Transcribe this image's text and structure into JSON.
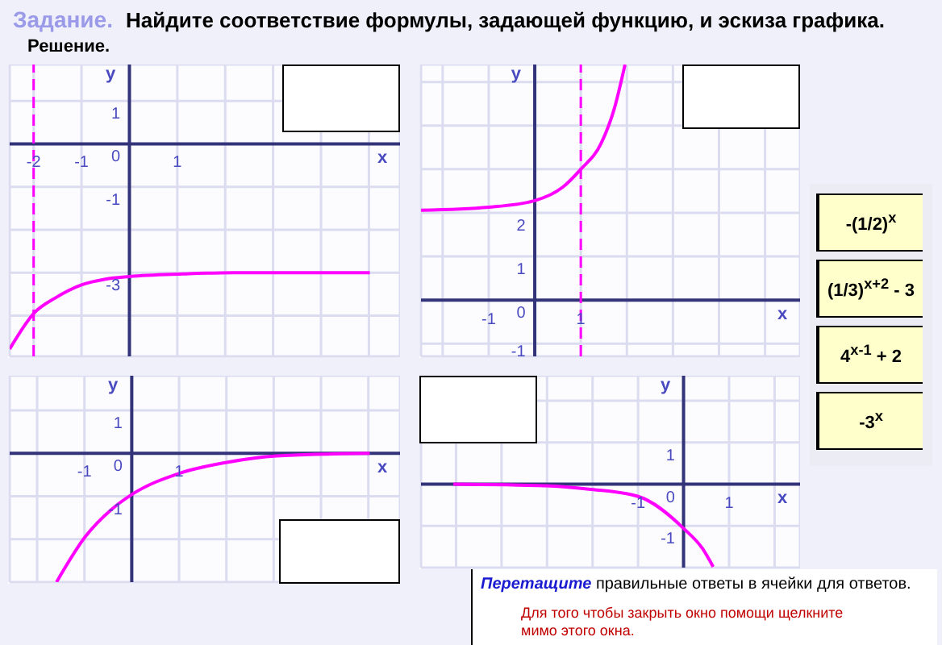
{
  "chart_data": [
    {
      "type": "line",
      "xlabel": "x",
      "ylabel": "y",
      "color": "#ff00ff",
      "grid": true,
      "x": [
        -2.5,
        -1.98,
        -1.55,
        -0.99,
        -0.5,
        0,
        1.13,
        2.17,
        3.5,
        5.02
      ],
      "values": [
        -4.78,
        -3.93,
        -3.59,
        -3.28,
        -3.15,
        -3.09,
        -3.03,
        -3,
        -3,
        -3
      ],
      "xlim": [
        -2.5,
        5.65
      ],
      "ylim": [
        -4.95,
        1.85
      ],
      "xticks": [
        -2,
        -1,
        {
          "value": 0,
          "label": null
        },
        1,
        {
          "value": 2,
          "label": null
        },
        {
          "value": 3,
          "label": null
        },
        {
          "value": 4,
          "label": null
        },
        {
          "value": 5,
          "label": null
        }
      ],
      "yticks": [
        1,
        0,
        -1,
        {
          "value": -2,
          "label": null
        },
        -3,
        {
          "value": -4,
          "label": null
        }
      ],
      "ref_lines": [
        {
          "axis": "x",
          "value": -2,
          "color": "#ff00ff",
          "line_style": "dashed"
        }
      ]
    },
    {
      "type": "line",
      "xlabel": "x",
      "ylabel": "y",
      "color": "#ff00ff",
      "grid": true,
      "x": [
        -2.47,
        -1,
        0,
        0.61,
        1,
        1.44,
        1.73,
        1.96
      ],
      "values": [
        2.06,
        2.13,
        2.28,
        2.59,
        3,
        3.59,
        4.4,
        5.4
      ],
      "xlim": [
        -2.47,
        5.76
      ],
      "ylim": [
        -1.29,
        5.4
      ],
      "xticks": [
        {
          "value": -2,
          "label": null
        },
        -1,
        {
          "value": 0,
          "label": null
        },
        1,
        {
          "value": 2,
          "label": null
        },
        {
          "value": 3,
          "label": null
        },
        {
          "value": 4,
          "label": null
        },
        {
          "value": 5,
          "label": null
        }
      ],
      "yticks": [
        -1,
        0,
        1,
        2,
        {
          "value": 3,
          "label": null
        },
        {
          "value": 4,
          "label": null
        },
        {
          "value": 5,
          "label": null
        }
      ],
      "ref_lines": [
        {
          "axis": "x",
          "value": 1,
          "color": "#ff00ff",
          "line_style": "dashed"
        }
      ]
    },
    {
      "type": "line",
      "xlabel": "x",
      "ylabel": "y",
      "color": "#ff00ff",
      "grid": true,
      "x": [
        -1.59,
        -0.98,
        -0.43,
        0,
        1.02,
        2.01,
        3.06,
        5.03
      ],
      "values": [
        -3,
        -1.94,
        -1.31,
        -0.96,
        -0.46,
        -0.21,
        -0.06,
        0
      ],
      "xlim": [
        -2.58,
        5.67
      ],
      "ylim": [
        -3,
        1.81
      ],
      "xticks": [
        {
          "value": -2,
          "label": null
        },
        -1,
        {
          "value": 0,
          "label": null
        },
        1,
        {
          "value": 2,
          "label": null
        },
        {
          "value": 3,
          "label": null
        },
        {
          "value": 4,
          "label": null
        },
        {
          "value": 5,
          "label": null
        }
      ],
      "yticks": [
        1,
        0,
        -1,
        {
          "value": -2,
          "label": null
        },
        {
          "value": -3,
          "label": null
        }
      ]
    },
    {
      "type": "line",
      "xlabel": "x",
      "ylabel": "y",
      "color": "#ff00ff",
      "grid": true,
      "x": [
        -5.06,
        -3.04,
        -2.08,
        -1.01,
        0,
        0.42,
        0.65
      ],
      "values": [
        0,
        -0.04,
        -0.12,
        -0.29,
        -1.06,
        -1.55,
        -1.98
      ],
      "xlim": [
        -5.77,
        2.56
      ],
      "ylim": [
        -2,
        2.6
      ],
      "xticks": [
        {
          "value": -5,
          "label": null
        },
        {
          "value": -4,
          "label": null
        },
        {
          "value": -3,
          "label": null
        },
        {
          "value": -2,
          "label": null
        },
        -1,
        {
          "value": 0,
          "label": null
        },
        1,
        {
          "value": 2,
          "label": null
        }
      ],
      "yticks": [
        {
          "value": 2,
          "label": null
        },
        1,
        0,
        -1,
        {
          "value": -2,
          "label": null
        }
      ]
    },
    {
      "type": "other",
      "title": "Задание.",
      "subtitle": "Найдите соответствие формулы, задающей функцию, и эскиза графика.",
      "annotations": [
        "Решение.",
        "-(1/2)$^{x}$",
        "(1/3)$^{x+2}$ - 3",
        "4$^{x-1}$ + 2",
        "-3$^{x}$",
        "Перетащите правильные ответы в ячейки для ответов.",
        "Для того чтобы закрыть окно помощи щелкните мимо этого окна."
      ]
    }
  ]
}
